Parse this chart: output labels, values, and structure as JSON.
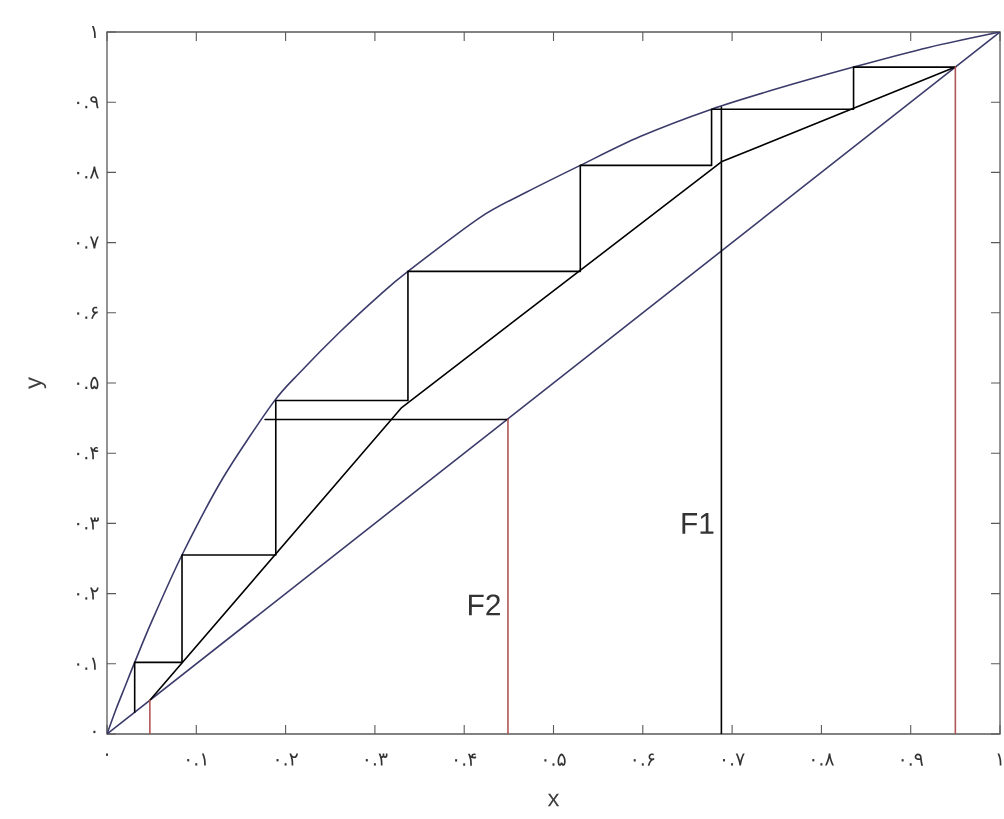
{
  "chart_data": {
    "type": "line",
    "xlabel": "x",
    "ylabel": "y",
    "xlim": [
      0,
      1
    ],
    "ylim": [
      0,
      1
    ],
    "xticks": [
      {
        "value": 0,
        "label": "۰"
      },
      {
        "value": 0.1,
        "label": "۰.۱"
      },
      {
        "value": 0.2,
        "label": "۰.۲"
      },
      {
        "value": 0.3,
        "label": "۰.۳"
      },
      {
        "value": 0.4,
        "label": "۰.۴"
      },
      {
        "value": 0.5,
        "label": "۰.۵"
      },
      {
        "value": 0.6,
        "label": "۰.۶"
      },
      {
        "value": 0.7,
        "label": "۰.۷"
      },
      {
        "value": 0.8,
        "label": "۰.۸"
      },
      {
        "value": 0.9,
        "label": "۰.۹"
      },
      {
        "value": 1,
        "label": "۱"
      }
    ],
    "yticks": [
      {
        "value": 0,
        "label": "۰"
      },
      {
        "value": 0.1,
        "label": "۰.۱"
      },
      {
        "value": 0.2,
        "label": "۰.۲"
      },
      {
        "value": 0.3,
        "label": "۰.۳"
      },
      {
        "value": 0.4,
        "label": "۰.۴"
      },
      {
        "value": 0.5,
        "label": "۰.۵"
      },
      {
        "value": 0.6,
        "label": "۰.۶"
      },
      {
        "value": 0.7,
        "label": "۰.۷"
      },
      {
        "value": 0.8,
        "label": "۰.۸"
      },
      {
        "value": 0.9,
        "label": "۰.۹"
      },
      {
        "value": 1,
        "label": "۱"
      }
    ],
    "series": [
      {
        "color": "#3b3b6b",
        "x": [
          0,
          0.01,
          0.02,
          0.031,
          0.05,
          0.084,
          0.13,
          0.186,
          0.216,
          0.261,
          0.306,
          0.337,
          0.418,
          0.47,
          0.53,
          0.597,
          0.677,
          0.75,
          0.836,
          0.92,
          1
        ],
        "values": [
          0,
          0.035,
          0.067,
          0.102,
          0.16,
          0.255,
          0.365,
          0.472,
          0.515,
          0.573,
          0.626,
          0.659,
          0.736,
          0.772,
          0.81,
          0.851,
          0.89,
          0.919,
          0.95,
          0.978,
          1
        ]
      },
      {
        "color": "#3b3b6b",
        "x": [
          0,
          1
        ],
        "values": [
          0,
          1
        ]
      },
      {
        "color": "#000000",
        "x": [
          0.048,
          0.33,
          0.688,
          0.95
        ],
        "values": [
          0.048,
          0.465,
          0.815,
          0.95
        ]
      },
      {
        "color": "#000000",
        "x": [
          0.95,
          0.836,
          0.836,
          0.677,
          0.677,
          0.53,
          0.53,
          0.337,
          0.337,
          0.189,
          0.189,
          0.084,
          0.084,
          0.031,
          0.031
        ],
        "values": [
          0.95,
          0.95,
          0.89,
          0.89,
          0.81,
          0.81,
          0.659,
          0.659,
          0.475,
          0.475,
          0.255,
          0.255,
          0.102,
          0.102,
          0.031
        ]
      },
      {
        "color": "#000000",
        "x": [
          0.177,
          0.449
        ],
        "values": [
          0.448,
          0.448
        ]
      },
      {
        "color": "#000000",
        "x": [
          0.688,
          0.688
        ],
        "values": [
          0,
          0.893
        ]
      },
      {
        "color": "#b05555",
        "x": [
          0.048,
          0.048
        ],
        "values": [
          0,
          0.048
        ]
      },
      {
        "color": "#b05555",
        "x": [
          0.449,
          0.449
        ],
        "values": [
          0,
          0.448
        ]
      },
      {
        "color": "#b05555",
        "x": [
          0.95,
          0.95
        ],
        "values": [
          0,
          0.95
        ]
      }
    ],
    "annotations": [
      {
        "text": "F1",
        "x": 0.688,
        "y": 0.3
      },
      {
        "text": "F2",
        "x": 0.449,
        "y": 0.184
      }
    ]
  }
}
